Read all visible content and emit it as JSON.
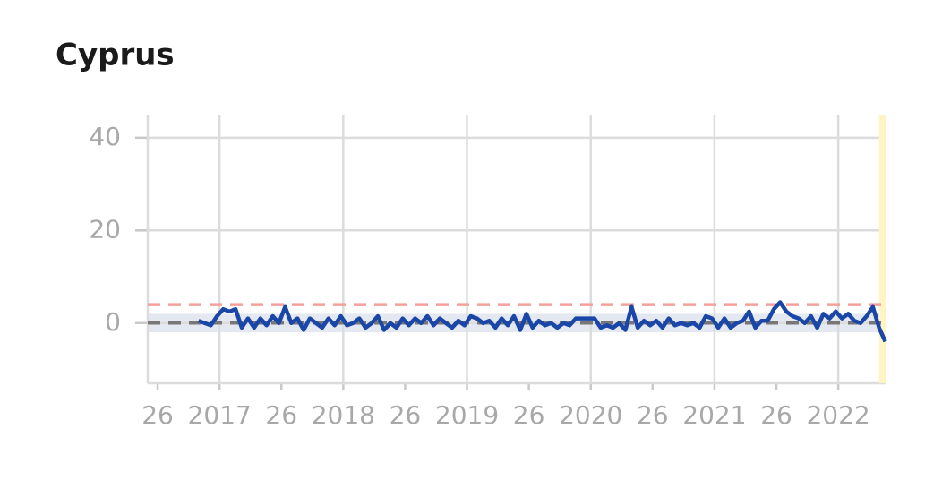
{
  "chart_data": {
    "type": "line",
    "title": "Cyprus",
    "x": [
      2016.83,
      2016.88,
      2016.93,
      2016.98,
      2017.03,
      2017.08,
      2017.13,
      2017.18,
      2017.23,
      2017.28,
      2017.33,
      2017.38,
      2017.43,
      2017.48,
      2017.53,
      2017.58,
      2017.63,
      2017.68,
      2017.73,
      2017.78,
      2017.83,
      2017.88,
      2017.93,
      2017.98,
      2018.03,
      2018.08,
      2018.13,
      2018.18,
      2018.23,
      2018.28,
      2018.33,
      2018.38,
      2018.43,
      2018.48,
      2018.53,
      2018.58,
      2018.63,
      2018.68,
      2018.73,
      2018.78,
      2018.83,
      2018.88,
      2018.93,
      2018.98,
      2019.03,
      2019.08,
      2019.13,
      2019.18,
      2019.23,
      2019.28,
      2019.33,
      2019.38,
      2019.43,
      2019.48,
      2019.53,
      2019.58,
      2019.63,
      2019.68,
      2019.73,
      2019.78,
      2019.83,
      2019.88,
      2019.93,
      2019.98,
      2020.03,
      2020.08,
      2020.13,
      2020.18,
      2020.23,
      2020.28,
      2020.33,
      2020.38,
      2020.43,
      2020.48,
      2020.53,
      2020.58,
      2020.63,
      2020.68,
      2020.73,
      2020.78,
      2020.83,
      2020.88,
      2020.93,
      2020.98,
      2021.03,
      2021.08,
      2021.13,
      2021.18,
      2021.23,
      2021.28,
      2021.33,
      2021.38,
      2021.43,
      2021.48,
      2021.53,
      2021.58,
      2021.63,
      2021.68,
      2021.73,
      2021.78,
      2021.83,
      2021.88,
      2021.93,
      2021.98,
      2022.03,
      2022.08,
      2022.13,
      2022.18,
      2022.23,
      2022.28,
      2022.33,
      2022.38
    ],
    "series": [
      {
        "color": "#1a46a8",
        "values": [
          0.5,
          0,
          -0.5,
          1.5,
          3,
          2.5,
          3,
          -1,
          1,
          -1,
          1,
          -0.5,
          1.5,
          0,
          3.5,
          0,
          1,
          -1.5,
          1,
          0,
          -1,
          1,
          -0.5,
          1.5,
          -0.5,
          0,
          1,
          -1,
          0,
          1.5,
          -1.5,
          0,
          -1,
          1,
          -0.5,
          1,
          0,
          1.5,
          -0.5,
          1,
          0,
          -1,
          0.5,
          -0.5,
          1.5,
          1,
          0,
          0.5,
          -1,
          1,
          -0.5,
          1.5,
          -1.5,
          2,
          -1,
          0.5,
          -0.5,
          0,
          -1,
          0,
          -0.5,
          1,
          1,
          1,
          1,
          -1,
          -0.5,
          -1,
          0,
          -1.5,
          3.5,
          -1,
          0.5,
          -0.5,
          0.5,
          -1,
          1,
          -0.5,
          0,
          -0.5,
          0,
          -1,
          1.5,
          1,
          -1,
          1,
          -1,
          0,
          0.5,
          2.5,
          -1,
          0.5,
          0.5,
          3,
          4.5,
          2.5,
          1.5,
          1,
          0,
          1.5,
          -1,
          2,
          1,
          2.5,
          1,
          2,
          0.5,
          0,
          1.5,
          3.5,
          -1,
          -4
        ]
      }
    ],
    "xlim": [
      2016.42,
      2022.39
    ],
    "xticks": [
      {
        "value": 2016.5,
        "label": "26"
      },
      2017,
      {
        "value": 2017.5,
        "label": "26"
      },
      2018,
      {
        "value": 2018.5,
        "label": "26"
      },
      2019,
      {
        "value": 2019.5,
        "label": "26"
      },
      2020,
      {
        "value": 2020.5,
        "label": "26"
      },
      2021,
      {
        "value": 2021.5,
        "label": "26"
      },
      2022
    ],
    "ylim": [
      -13,
      45
    ],
    "yticks": [
      0,
      20,
      40
    ],
    "grid": true,
    "reference_lines": [
      {
        "value": 4,
        "color": "#f4a09c"
      },
      {
        "value": 0,
        "color": "#777777"
      }
    ],
    "band": {
      "range": [
        -2,
        2
      ],
      "color": "#e4e9f1"
    },
    "highlight": {
      "range": [
        2022.33,
        2022.39
      ],
      "color": "#fff4c4"
    }
  }
}
